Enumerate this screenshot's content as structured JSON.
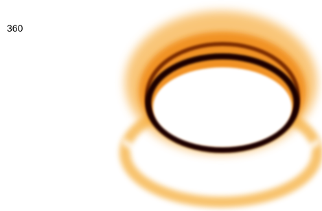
{
  "label": "360"
}
